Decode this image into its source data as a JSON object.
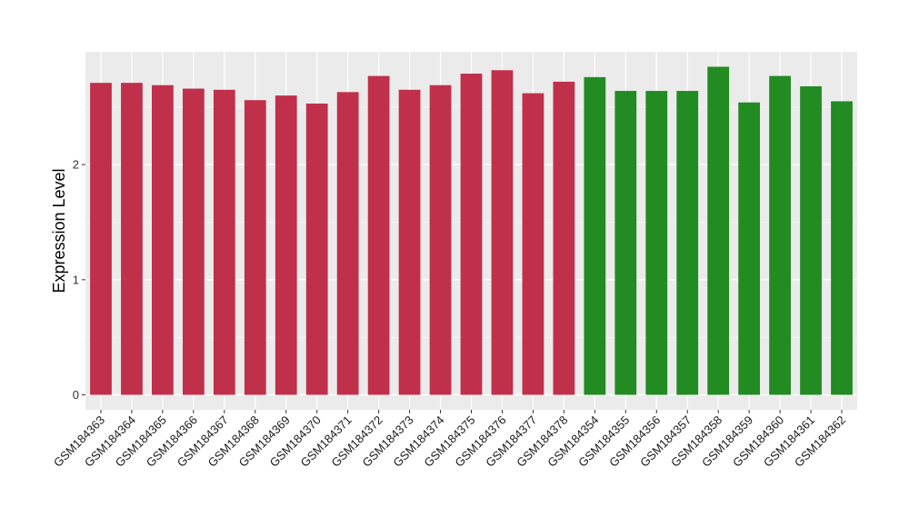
{
  "chart_data": {
    "type": "bar",
    "title": "",
    "xlabel": "",
    "ylabel": "Expression Level",
    "ylim": [
      -0.13,
      2.98
    ],
    "yticks": [
      0,
      1,
      2
    ],
    "grid": true,
    "legend": "none",
    "categories": [
      "GSM184363",
      "GSM184364",
      "GSM184365",
      "GSM184366",
      "GSM184367",
      "GSM184368",
      "GSM184369",
      "GSM184370",
      "GSM184371",
      "GSM184372",
      "GSM184373",
      "GSM184374",
      "GSM184375",
      "GSM184376",
      "GSM184377",
      "GSM184378",
      "GSM184354",
      "GSM184355",
      "GSM184356",
      "GSM184357",
      "GSM184358",
      "GSM184359",
      "GSM184360",
      "GSM184361",
      "GSM184362"
    ],
    "values": [
      2.71,
      2.71,
      2.69,
      2.66,
      2.65,
      2.56,
      2.6,
      2.53,
      2.63,
      2.77,
      2.65,
      2.69,
      2.79,
      2.82,
      2.62,
      2.72,
      2.76,
      2.64,
      2.64,
      2.64,
      2.85,
      2.54,
      2.77,
      2.68,
      2.55
    ],
    "group_colors": [
      "#C0304A",
      "#C0304A",
      "#C0304A",
      "#C0304A",
      "#C0304A",
      "#C0304A",
      "#C0304A",
      "#C0304A",
      "#C0304A",
      "#C0304A",
      "#C0304A",
      "#C0304A",
      "#C0304A",
      "#C0304A",
      "#C0304A",
      "#C0304A",
      "#228B22",
      "#228B22",
      "#228B22",
      "#228B22",
      "#228B22",
      "#228B22",
      "#228B22",
      "#228B22",
      "#228B22"
    ]
  },
  "colors": {
    "panel_background": "#EBEBEB",
    "grid_major": "#FFFFFF",
    "grid_minor": "#F5F5F5"
  }
}
